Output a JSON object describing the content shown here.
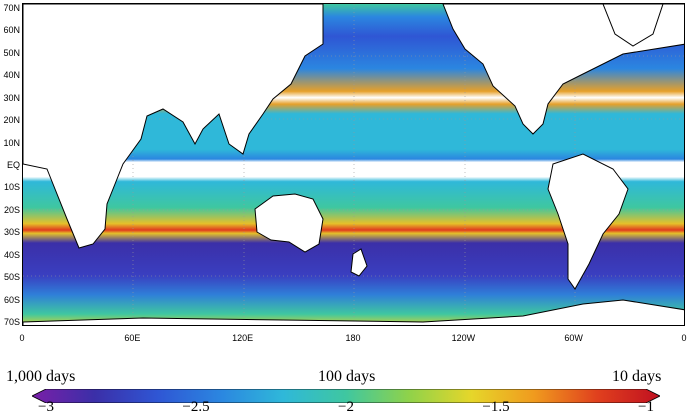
{
  "map": {
    "lat_labels": [
      "70N",
      "60N",
      "50N",
      "40N",
      "30N",
      "20N",
      "10N",
      "EQ",
      "10S",
      "20S",
      "30S",
      "40S",
      "50S",
      "60S",
      "70S"
    ],
    "lon_labels": [
      "0",
      "60E",
      "120E",
      "180",
      "120W",
      "60W",
      "0"
    ],
    "masked_bands": [
      "EQ",
      "30N",
      "30S"
    ],
    "land_color": "#ffffff",
    "coastline_color": "#000000",
    "gridline_style": "dotted"
  },
  "colorbar": {
    "label_left": "1,000 days",
    "label_mid": "100 days",
    "label_right": "10 days",
    "ticks": [
      "−3",
      "−2.5",
      "−2",
      "−1.5",
      "−1"
    ],
    "tick_values": [
      -3,
      -2.5,
      -2,
      -1.5,
      -1
    ],
    "range": [
      -3,
      -1
    ],
    "colormap": [
      "#7a1fa8",
      "#3b2fa8",
      "#2f56d4",
      "#2b86e0",
      "#2fb8d9",
      "#3fc7a0",
      "#8fd24a",
      "#e6d62a",
      "#f09a1e",
      "#e0401e",
      "#c01020"
    ]
  }
}
